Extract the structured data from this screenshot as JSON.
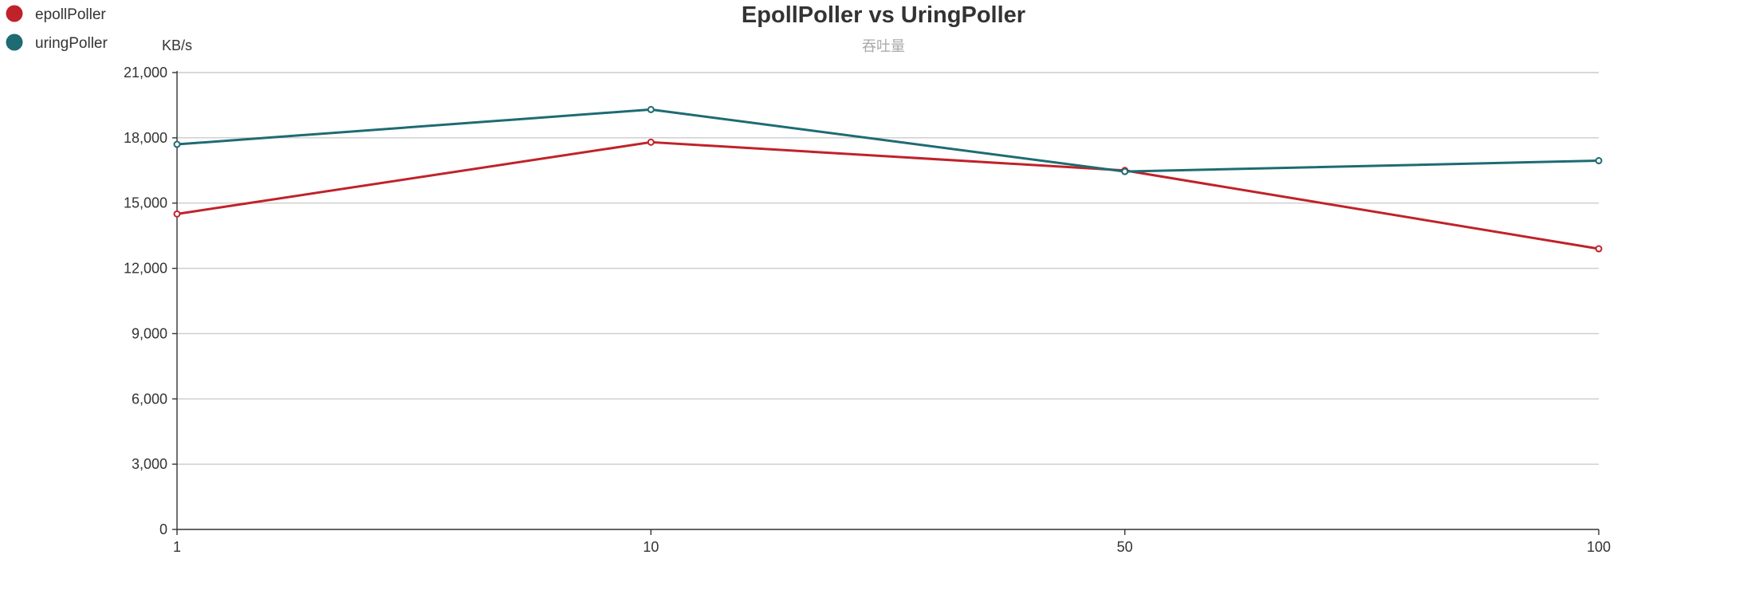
{
  "chart_data": {
    "type": "line",
    "title": "EpollPoller vs UringPoller",
    "subtitle": "吞吐量",
    "xlabel": "",
    "ylabel": "KB/s",
    "categories": [
      "1",
      "10",
      "50",
      "100"
    ],
    "ylim": [
      0,
      21000
    ],
    "yticks": [
      "0",
      "3,000",
      "6,000",
      "9,000",
      "12,000",
      "15,000",
      "18,000",
      "21,000"
    ],
    "grid": true,
    "legend_position": "top-left",
    "series": [
      {
        "name": "epollPoller",
        "color": "#c0222a",
        "values": [
          14500,
          17800,
          16500,
          12900
        ]
      },
      {
        "name": "uringPoller",
        "color": "#1e6b73",
        "values": [
          17700,
          19300,
          16450,
          16950
        ]
      }
    ]
  }
}
